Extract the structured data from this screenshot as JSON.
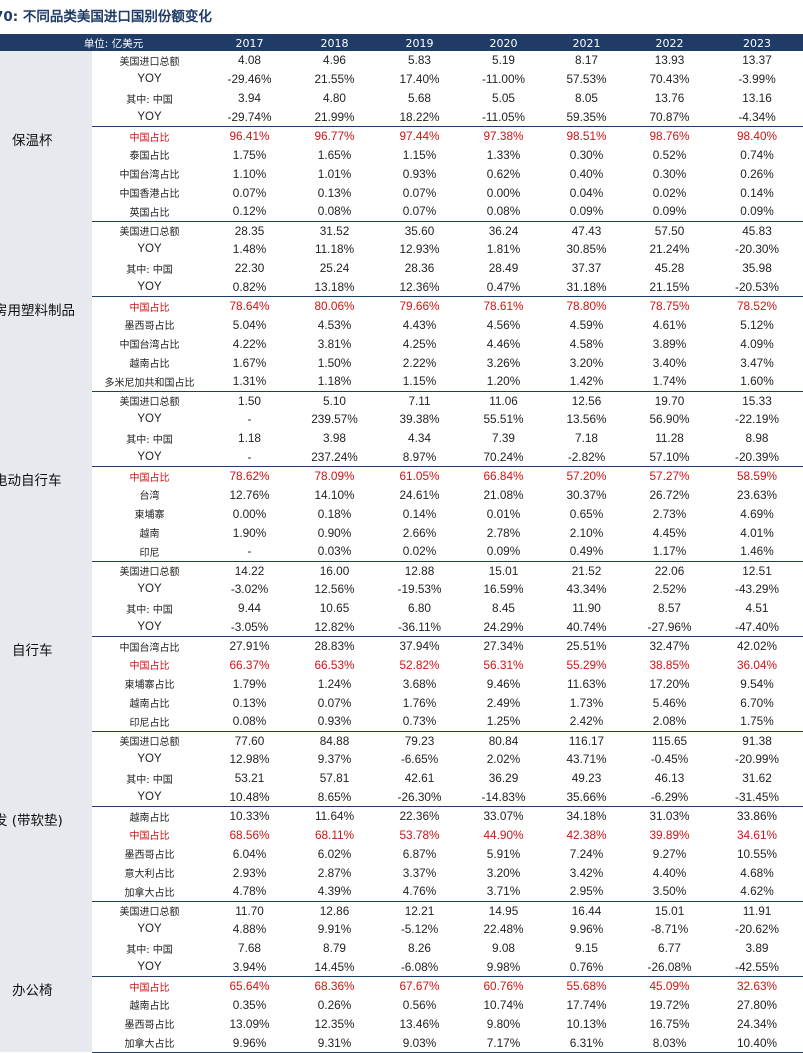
{
  "title": "70:  不同品类美国进口国别份额变化",
  "header": {
    "unit": "单位: 亿美元",
    "years": [
      "2017",
      "2018",
      "2019",
      "2020",
      "2021",
      "2022",
      "2023"
    ]
  },
  "groups": [
    {
      "category": "保温杯",
      "cat_row": 4,
      "rows": [
        {
          "label": "美国进口总额",
          "values": [
            "4.08",
            "4.96",
            "5.83",
            "5.19",
            "8.17",
            "13.93",
            "13.37"
          ]
        },
        {
          "label": "YOY",
          "values": [
            "-29.46%",
            "21.55%",
            "17.40%",
            "-11.00%",
            "57.53%",
            "70.43%",
            "-3.99%"
          ]
        },
        {
          "label": "其中: 中国",
          "values": [
            "3.94",
            "4.80",
            "5.68",
            "5.05",
            "8.05",
            "13.76",
            "13.16"
          ]
        },
        {
          "label": "YOY",
          "values": [
            "-29.74%",
            "21.99%",
            "18.22%",
            "-11.05%",
            "59.35%",
            "70.87%",
            "-4.34%"
          ]
        },
        {
          "label": "中国占比",
          "red": true,
          "values": [
            "96.41%",
            "96.77%",
            "97.44%",
            "97.38%",
            "98.51%",
            "98.76%",
            "98.40%"
          ]
        },
        {
          "label": "泰国占比",
          "values": [
            "1.75%",
            "1.65%",
            "1.15%",
            "1.33%",
            "0.30%",
            "0.52%",
            "0.74%"
          ]
        },
        {
          "label": "中国台湾占比",
          "values": [
            "1.10%",
            "1.01%",
            "0.93%",
            "0.62%",
            "0.40%",
            "0.30%",
            "0.26%"
          ]
        },
        {
          "label": "中国香港占比",
          "values": [
            "0.07%",
            "0.13%",
            "0.07%",
            "0.00%",
            "0.04%",
            "0.02%",
            "0.14%"
          ]
        },
        {
          "label": "英国占比",
          "values": [
            "0.12%",
            "0.08%",
            "0.07%",
            "0.08%",
            "0.09%",
            "0.09%",
            "0.09%"
          ]
        }
      ]
    },
    {
      "category": "房用塑料制品",
      "cat_row": 4,
      "rows": [
        {
          "label": "美国进口总额",
          "values": [
            "28.35",
            "31.52",
            "35.60",
            "36.24",
            "47.43",
            "57.50",
            "45.83"
          ]
        },
        {
          "label": "YOY",
          "values": [
            "1.48%",
            "11.18%",
            "12.93%",
            "1.81%",
            "30.85%",
            "21.24%",
            "-20.30%"
          ]
        },
        {
          "label": "其中: 中国",
          "values": [
            "22.30",
            "25.24",
            "28.36",
            "28.49",
            "37.37",
            "45.28",
            "35.98"
          ]
        },
        {
          "label": "YOY",
          "values": [
            "0.82%",
            "13.18%",
            "12.36%",
            "0.47%",
            "31.18%",
            "21.15%",
            "-20.53%"
          ]
        },
        {
          "label": "中国占比",
          "red": true,
          "values": [
            "78.64%",
            "80.06%",
            "79.66%",
            "78.61%",
            "78.80%",
            "78.75%",
            "78.52%"
          ]
        },
        {
          "label": "墨西哥占比",
          "values": [
            "5.04%",
            "4.53%",
            "4.43%",
            "4.56%",
            "4.59%",
            "4.61%",
            "5.12%"
          ]
        },
        {
          "label": "中国台湾占比",
          "values": [
            "4.22%",
            "3.81%",
            "4.25%",
            "4.46%",
            "4.58%",
            "3.89%",
            "4.09%"
          ]
        },
        {
          "label": "越南占比",
          "values": [
            "1.67%",
            "1.50%",
            "2.22%",
            "3.26%",
            "3.20%",
            "3.40%",
            "3.47%"
          ]
        },
        {
          "label": "多米尼加共和国占比",
          "values": [
            "1.31%",
            "1.18%",
            "1.15%",
            "1.20%",
            "1.42%",
            "1.74%",
            "1.60%"
          ]
        }
      ]
    },
    {
      "category": "电动自行车",
      "cat_row": 4,
      "rows": [
        {
          "label": "美国进口总额",
          "values": [
            "1.50",
            "5.10",
            "7.11",
            "11.06",
            "12.56",
            "19.70",
            "15.33"
          ]
        },
        {
          "label": "YOY",
          "values": [
            "-",
            "239.57%",
            "39.38%",
            "55.51%",
            "13.56%",
            "56.90%",
            "-22.19%"
          ]
        },
        {
          "label": "其中: 中国",
          "values": [
            "1.18",
            "3.98",
            "4.34",
            "7.39",
            "7.18",
            "11.28",
            "8.98"
          ]
        },
        {
          "label": "YOY",
          "values": [
            "-",
            "237.24%",
            "8.97%",
            "70.24%",
            "-2.82%",
            "57.10%",
            "-20.39%"
          ]
        },
        {
          "label": "中国占比",
          "red": true,
          "values": [
            "78.62%",
            "78.09%",
            "61.05%",
            "66.84%",
            "57.20%",
            "57.27%",
            "58.59%"
          ]
        },
        {
          "label": "台湾",
          "values": [
            "12.76%",
            "14.10%",
            "24.61%",
            "21.08%",
            "30.37%",
            "26.72%",
            "23.63%"
          ]
        },
        {
          "label": "柬埔寨",
          "values": [
            "0.00%",
            "0.18%",
            "0.14%",
            "0.01%",
            "0.65%",
            "2.73%",
            "4.69%"
          ]
        },
        {
          "label": "越南",
          "values": [
            "1.90%",
            "0.90%",
            "2.66%",
            "2.78%",
            "2.10%",
            "4.45%",
            "4.01%"
          ]
        },
        {
          "label": "印尼",
          "values": [
            "-",
            "0.03%",
            "0.02%",
            "0.09%",
            "0.49%",
            "1.17%",
            "1.46%"
          ]
        }
      ]
    },
    {
      "category": "自行车",
      "cat_row": 4,
      "rows": [
        {
          "label": "美国进口总额",
          "values": [
            "14.22",
            "16.00",
            "12.88",
            "15.01",
            "21.52",
            "22.06",
            "12.51"
          ]
        },
        {
          "label": "YOY",
          "values": [
            "-3.02%",
            "12.56%",
            "-19.53%",
            "16.59%",
            "43.34%",
            "2.52%",
            "-43.29%"
          ]
        },
        {
          "label": "其中: 中国",
          "values": [
            "9.44",
            "10.65",
            "6.80",
            "8.45",
            "11.90",
            "8.57",
            "4.51"
          ]
        },
        {
          "label": "YOY",
          "values": [
            "-3.05%",
            "12.82%",
            "-36.11%",
            "24.29%",
            "40.74%",
            "-27.96%",
            "-47.40%"
          ]
        },
        {
          "label": "中国台湾占比",
          "values": [
            "27.91%",
            "28.83%",
            "37.94%",
            "27.34%",
            "25.51%",
            "32.47%",
            "42.02%"
          ]
        },
        {
          "label": "中国占比",
          "red": true,
          "values": [
            "66.37%",
            "66.53%",
            "52.82%",
            "56.31%",
            "55.29%",
            "38.85%",
            "36.04%"
          ]
        },
        {
          "label": "柬埔寨占比",
          "values": [
            "1.79%",
            "1.24%",
            "3.68%",
            "9.46%",
            "11.63%",
            "17.20%",
            "9.54%"
          ]
        },
        {
          "label": "越南占比",
          "values": [
            "0.13%",
            "0.07%",
            "1.76%",
            "2.49%",
            "1.73%",
            "5.46%",
            "6.70%"
          ]
        },
        {
          "label": "印尼占比",
          "values": [
            "0.08%",
            "0.93%",
            "0.73%",
            "1.25%",
            "2.42%",
            "2.08%",
            "1.75%"
          ]
        }
      ]
    },
    {
      "category": "发 (带软垫)",
      "cat_row": 4,
      "rows": [
        {
          "label": "美国进口总额",
          "values": [
            "77.60",
            "84.88",
            "79.23",
            "80.84",
            "116.17",
            "115.65",
            "91.38"
          ]
        },
        {
          "label": "YOY",
          "values": [
            "12.98%",
            "9.37%",
            "-6.65%",
            "2.02%",
            "43.71%",
            "-0.45%",
            "-20.99%"
          ]
        },
        {
          "label": "其中: 中国",
          "values": [
            "53.21",
            "57.81",
            "42.61",
            "36.29",
            "49.23",
            "46.13",
            "31.62"
          ]
        },
        {
          "label": "YOY",
          "values": [
            "10.48%",
            "8.65%",
            "-26.30%",
            "-14.83%",
            "35.66%",
            "-6.29%",
            "-31.45%"
          ]
        },
        {
          "label": "越南占比",
          "values": [
            "10.33%",
            "11.64%",
            "22.36%",
            "33.07%",
            "34.18%",
            "31.03%",
            "33.86%"
          ]
        },
        {
          "label": "中国占比",
          "red": true,
          "values": [
            "68.56%",
            "68.11%",
            "53.78%",
            "44.90%",
            "42.38%",
            "39.89%",
            "34.61%"
          ]
        },
        {
          "label": "墨西哥占比",
          "values": [
            "6.04%",
            "6.02%",
            "6.87%",
            "5.91%",
            "7.24%",
            "9.27%",
            "10.55%"
          ]
        },
        {
          "label": "意大利占比",
          "values": [
            "2.93%",
            "2.87%",
            "3.37%",
            "3.20%",
            "3.42%",
            "4.40%",
            "4.68%"
          ]
        },
        {
          "label": "加拿大占比",
          "values": [
            "4.78%",
            "4.39%",
            "4.76%",
            "3.71%",
            "2.95%",
            "3.50%",
            "4.62%"
          ]
        }
      ]
    },
    {
      "category": "办公椅",
      "cat_row": 4,
      "rows": [
        {
          "label": "美国进口总额",
          "values": [
            "11.70",
            "12.86",
            "12.21",
            "14.95",
            "16.44",
            "15.01",
            "11.91"
          ]
        },
        {
          "label": "YOY",
          "values": [
            "4.88%",
            "9.91%",
            "-5.12%",
            "22.48%",
            "9.96%",
            "-8.71%",
            "-20.62%"
          ]
        },
        {
          "label": "其中: 中国",
          "values": [
            "7.68",
            "8.79",
            "8.26",
            "9.08",
            "9.15",
            "6.77",
            "3.89"
          ]
        },
        {
          "label": "YOY",
          "values": [
            "3.94%",
            "14.45%",
            "-6.08%",
            "9.98%",
            "0.76%",
            "-26.08%",
            "-42.55%"
          ]
        },
        {
          "label": "中国占比",
          "red": true,
          "values": [
            "65.64%",
            "68.36%",
            "67.67%",
            "60.76%",
            "55.68%",
            "45.09%",
            "32.63%"
          ]
        },
        {
          "label": "越南占比",
          "values": [
            "0.35%",
            "0.26%",
            "0.56%",
            "10.74%",
            "17.74%",
            "19.72%",
            "27.80%"
          ]
        },
        {
          "label": "墨西哥占比",
          "values": [
            "13.09%",
            "12.35%",
            "13.46%",
            "9.80%",
            "10.13%",
            "16.75%",
            "24.34%"
          ]
        },
        {
          "label": "加拿大占比",
          "values": [
            "9.96%",
            "9.31%",
            "9.03%",
            "7.17%",
            "6.31%",
            "8.03%",
            "10.40%"
          ]
        }
      ]
    }
  ]
}
